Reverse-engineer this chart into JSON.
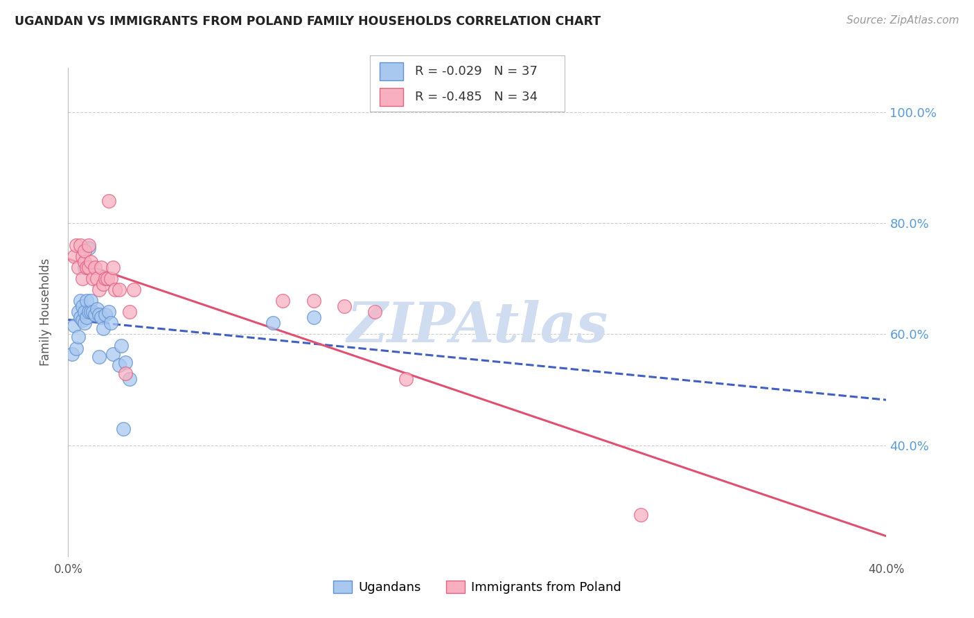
{
  "title": "UGANDAN VS IMMIGRANTS FROM POLAND FAMILY HOUSEHOLDS CORRELATION CHART",
  "source": "Source: ZipAtlas.com",
  "ylabel": "Family Households",
  "ytick_labels": [
    "100.0%",
    "80.0%",
    "60.0%",
    "40.0%"
  ],
  "ytick_values": [
    1.0,
    0.8,
    0.6,
    0.4
  ],
  "xlim": [
    0.0,
    0.4
  ],
  "ylim": [
    0.2,
    1.08
  ],
  "legend_r1": "R = -0.029",
  "legend_n1": "N = 37",
  "legend_r2": "R = -0.485",
  "legend_n2": "N = 34",
  "blue_fill": "#A8C8F0",
  "blue_edge": "#6090D0",
  "pink_fill": "#F8B0C0",
  "pink_edge": "#E06080",
  "blue_line_color": "#4060C0",
  "pink_line_color": "#E05070",
  "watermark": "ZIPAtlas",
  "watermark_color": "#D0DCF0",
  "ugandan_points_x": [
    0.002,
    0.003,
    0.004,
    0.005,
    0.005,
    0.006,
    0.006,
    0.007,
    0.007,
    0.008,
    0.008,
    0.008,
    0.009,
    0.009,
    0.01,
    0.01,
    0.01,
    0.011,
    0.011,
    0.012,
    0.013,
    0.014,
    0.015,
    0.015,
    0.016,
    0.017,
    0.018,
    0.02,
    0.021,
    0.022,
    0.025,
    0.026,
    0.027,
    0.028,
    0.03,
    0.1,
    0.12
  ],
  "ugandan_points_y": [
    0.565,
    0.615,
    0.575,
    0.595,
    0.64,
    0.63,
    0.66,
    0.625,
    0.65,
    0.62,
    0.64,
    0.72,
    0.63,
    0.66,
    0.64,
    0.72,
    0.755,
    0.64,
    0.66,
    0.64,
    0.635,
    0.645,
    0.635,
    0.56,
    0.63,
    0.61,
    0.635,
    0.64,
    0.62,
    0.565,
    0.545,
    0.58,
    0.43,
    0.55,
    0.52,
    0.62,
    0.63
  ],
  "poland_points_x": [
    0.003,
    0.004,
    0.005,
    0.006,
    0.007,
    0.007,
    0.008,
    0.008,
    0.009,
    0.01,
    0.01,
    0.011,
    0.012,
    0.013,
    0.014,
    0.015,
    0.016,
    0.017,
    0.018,
    0.019,
    0.02,
    0.021,
    0.022,
    0.023,
    0.025,
    0.028,
    0.03,
    0.032,
    0.105,
    0.12,
    0.135,
    0.15,
    0.165,
    0.28
  ],
  "poland_points_y": [
    0.74,
    0.76,
    0.72,
    0.76,
    0.7,
    0.74,
    0.73,
    0.75,
    0.72,
    0.76,
    0.72,
    0.73,
    0.7,
    0.72,
    0.7,
    0.68,
    0.72,
    0.69,
    0.7,
    0.7,
    0.84,
    0.7,
    0.72,
    0.68,
    0.68,
    0.53,
    0.64,
    0.68,
    0.66,
    0.66,
    0.65,
    0.64,
    0.52,
    0.275
  ]
}
